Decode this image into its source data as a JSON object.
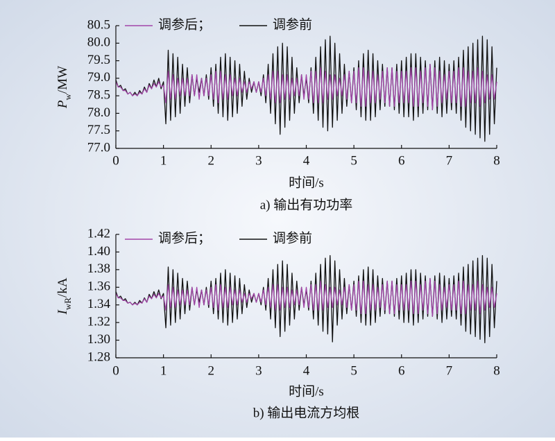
{
  "chart_data": [
    {
      "type": "line",
      "ylabel": {
        "symbol": "P",
        "subscript": "w",
        "unit": "/MW"
      },
      "xlabel": "时间/s",
      "caption": "a) 输出有功功率",
      "xlim": [
        0,
        8
      ],
      "xticks": [
        0,
        1,
        2,
        3,
        4,
        5,
        6,
        7,
        8
      ],
      "ylim": [
        77,
        80.5
      ],
      "yticks": [
        {
          "value": 77,
          "label": "77.0"
        },
        77.5,
        {
          "value": 78,
          "label": "78.0"
        },
        78.5,
        {
          "value": 79,
          "label": "79.0"
        },
        79.5,
        {
          "value": 80,
          "label": "80.0"
        },
        80.5
      ],
      "x": [
        0,
        0.05,
        0.1,
        0.15,
        0.2,
        0.25,
        0.3,
        0.35,
        0.4,
        0.45,
        0.5,
        0.55,
        0.6,
        0.65,
        0.7,
        0.75,
        0.8,
        0.85,
        0.9,
        0.95,
        1,
        1.05,
        1.1,
        1.15,
        1.2,
        1.25,
        1.3,
        1.35,
        1.4,
        1.45,
        1.5,
        1.55,
        1.6,
        1.65,
        1.7,
        1.75,
        1.8,
        1.85,
        1.9,
        1.95,
        2,
        2.05,
        2.1,
        2.15,
        2.2,
        2.25,
        2.3,
        2.35,
        2.4,
        2.45,
        2.5,
        2.55,
        2.6,
        2.65,
        2.7,
        2.75,
        2.8,
        2.85,
        2.9,
        2.95,
        3,
        3.05,
        3.1,
        3.15,
        3.2,
        3.25,
        3.3,
        3.35,
        3.4,
        3.45,
        3.5,
        3.55,
        3.6,
        3.65,
        3.7,
        3.75,
        3.8,
        3.85,
        3.9,
        3.95,
        4,
        4.05,
        4.1,
        4.15,
        4.2,
        4.25,
        4.3,
        4.35,
        4.4,
        4.45,
        4.5,
        4.55,
        4.6,
        4.65,
        4.7,
        4.75,
        4.8,
        4.85,
        4.9,
        4.95,
        5,
        5.05,
        5.1,
        5.15,
        5.2,
        5.25,
        5.3,
        5.35,
        5.4,
        5.45,
        5.5,
        5.55,
        5.6,
        5.65,
        5.7,
        5.75,
        5.8,
        5.85,
        5.9,
        5.95,
        6,
        6.05,
        6.1,
        6.15,
        6.2,
        6.25,
        6.3,
        6.35,
        6.4,
        6.45,
        6.5,
        6.55,
        6.6,
        6.65,
        6.7,
        6.75,
        6.8,
        6.85,
        6.9,
        6.95,
        7,
        7.05,
        7.1,
        7.15,
        7.2,
        7.25,
        7.3,
        7.35,
        7.4,
        7.45,
        7.5,
        7.55,
        7.6,
        7.65,
        7.7,
        7.75,
        7.8,
        7.85,
        7.9,
        7.95,
        8
      ],
      "series": [
        {
          "name": "调参后；",
          "color": "#a245a8",
          "values": [
            78.9,
            78.75,
            78.75,
            78.65,
            78.65,
            78.55,
            78.6,
            78.5,
            78.55,
            78.5,
            78.6,
            78.55,
            78.7,
            78.6,
            78.8,
            78.7,
            78.85,
            78.75,
            78.9,
            78.75,
            78.8,
            78.3,
            79.2,
            78.4,
            79.1,
            78.4,
            79.0,
            78.5,
            79.0,
            78.5,
            79.0,
            78.5,
            79.1,
            78.5,
            79.1,
            78.4,
            79.0,
            78.5,
            79.0,
            78.5,
            79.1,
            78.4,
            79.2,
            78.3,
            79.2,
            78.4,
            79.1,
            78.4,
            79.1,
            78.5,
            79.0,
            78.5,
            79.0,
            78.6,
            78.9,
            78.6,
            78.9,
            78.7,
            78.9,
            78.6,
            78.9,
            78.6,
            79.0,
            78.5,
            79.1,
            78.4,
            79.2,
            78.3,
            79.2,
            78.3,
            79.1,
            78.4,
            79.1,
            78.4,
            79.0,
            78.5,
            79.0,
            78.5,
            79.1,
            78.4,
            79.1,
            78.4,
            79.2,
            78.3,
            79.2,
            78.3,
            79.3,
            78.3,
            79.2,
            78.4,
            79.1,
            78.4,
            79.1,
            78.5,
            79.0,
            78.5,
            79.1,
            78.4,
            79.2,
            78.3,
            79.2,
            78.3,
            79.3,
            78.2,
            79.3,
            78.2,
            79.2,
            78.3,
            79.2,
            78.3,
            79.1,
            78.4,
            79.2,
            78.3,
            79.3,
            78.2,
            79.3,
            78.2,
            79.2,
            78.3,
            79.2,
            78.3,
            79.2,
            78.3,
            79.3,
            78.2,
            79.3,
            78.2,
            79.2,
            78.3,
            79.3,
            78.2,
            79.4,
            78.1,
            79.3,
            78.2,
            79.2,
            78.3,
            79.1,
            78.4,
            79.2,
            78.3,
            79.2,
            78.3,
            79.3,
            78.2,
            79.3,
            78.2,
            79.2,
            78.3,
            79.2,
            78.3,
            79.3,
            78.2,
            79.2,
            78.3,
            79.1,
            78.4,
            79.1,
            78.4,
            78.9
          ]
        },
        {
          "name": "调参前",
          "color": "#111111",
          "values": [
            78.95,
            78.75,
            78.8,
            78.65,
            78.7,
            78.55,
            78.6,
            78.5,
            78.6,
            78.5,
            78.65,
            78.55,
            78.75,
            78.6,
            78.85,
            78.7,
            78.95,
            78.75,
            79.0,
            78.7,
            78.9,
            77.7,
            79.8,
            77.8,
            79.7,
            77.9,
            79.6,
            78.0,
            79.4,
            78.2,
            79.3,
            78.3,
            79.1,
            78.5,
            79.0,
            78.6,
            79.0,
            78.5,
            79.1,
            78.4,
            79.3,
            78.2,
            79.4,
            78.0,
            79.6,
            77.9,
            79.7,
            77.8,
            79.6,
            77.9,
            79.5,
            78.0,
            79.4,
            78.2,
            79.2,
            78.4,
            79.0,
            78.6,
            78.9,
            78.6,
            78.9,
            78.5,
            79.1,
            78.3,
            79.4,
            78.0,
            79.7,
            77.7,
            79.9,
            77.4,
            80.0,
            77.6,
            79.9,
            77.8,
            79.6,
            78.0,
            79.3,
            78.3,
            79.1,
            78.5,
            79.0,
            78.3,
            79.3,
            78.0,
            79.6,
            77.8,
            79.9,
            77.6,
            80.1,
            77.5,
            80.2,
            77.6,
            80.0,
            77.8,
            79.7,
            78.0,
            79.4,
            78.2,
            79.2,
            78.3,
            79.3,
            78.1,
            79.5,
            77.9,
            79.7,
            77.8,
            79.8,
            77.8,
            79.7,
            77.9,
            79.5,
            78.1,
            79.4,
            78.2,
            79.3,
            78.2,
            79.3,
            78.1,
            79.4,
            78.0,
            79.5,
            77.9,
            79.6,
            77.9,
            79.7,
            77.8,
            79.7,
            77.9,
            79.6,
            78.0,
            79.5,
            78.1,
            79.4,
            78.1,
            79.5,
            78.0,
            79.6,
            77.9,
            79.5,
            78.0,
            79.4,
            78.1,
            79.5,
            78.0,
            79.6,
            77.8,
            79.8,
            77.6,
            79.9,
            77.5,
            80.0,
            77.4,
            80.1,
            77.3,
            80.2,
            77.2,
            80.1,
            77.4,
            79.9,
            77.7,
            79.3
          ]
        }
      ]
    },
    {
      "type": "line",
      "ylabel": {
        "symbol": "I",
        "subscript": "wR",
        "unit": "/kA"
      },
      "xlabel": "时间/s",
      "caption": "b) 输出电流方均根",
      "xlim": [
        0,
        8
      ],
      "xticks": [
        0,
        1,
        2,
        3,
        4,
        5,
        6,
        7,
        8
      ],
      "ylim": [
        1.28,
        1.42
      ],
      "yticks": [
        1.28,
        {
          "value": 1.3,
          "label": "1.30"
        },
        1.32,
        1.34,
        1.36,
        1.38,
        {
          "value": 1.4,
          "label": "1.40"
        },
        1.42
      ],
      "x": [
        0,
        0.05,
        0.1,
        0.15,
        0.2,
        0.25,
        0.3,
        0.35,
        0.4,
        0.45,
        0.5,
        0.55,
        0.6,
        0.65,
        0.7,
        0.75,
        0.8,
        0.85,
        0.9,
        0.95,
        1,
        1.05,
        1.1,
        1.15,
        1.2,
        1.25,
        1.3,
        1.35,
        1.4,
        1.45,
        1.5,
        1.55,
        1.6,
        1.65,
        1.7,
        1.75,
        1.8,
        1.85,
        1.9,
        1.95,
        2,
        2.05,
        2.1,
        2.15,
        2.2,
        2.25,
        2.3,
        2.35,
        2.4,
        2.45,
        2.5,
        2.55,
        2.6,
        2.65,
        2.7,
        2.75,
        2.8,
        2.85,
        2.9,
        2.95,
        3,
        3.05,
        3.1,
        3.15,
        3.2,
        3.25,
        3.3,
        3.35,
        3.4,
        3.45,
        3.5,
        3.55,
        3.6,
        3.65,
        3.7,
        3.75,
        3.8,
        3.85,
        3.9,
        3.95,
        4,
        4.05,
        4.1,
        4.15,
        4.2,
        4.25,
        4.3,
        4.35,
        4.4,
        4.45,
        4.5,
        4.55,
        4.6,
        4.65,
        4.7,
        4.75,
        4.8,
        4.85,
        4.9,
        4.95,
        5,
        5.05,
        5.1,
        5.15,
        5.2,
        5.25,
        5.3,
        5.35,
        5.4,
        5.45,
        5.5,
        5.55,
        5.6,
        5.65,
        5.7,
        5.75,
        5.8,
        5.85,
        5.9,
        5.95,
        6,
        6.05,
        6.1,
        6.15,
        6.2,
        6.25,
        6.3,
        6.35,
        6.4,
        6.45,
        6.5,
        6.55,
        6.6,
        6.65,
        6.7,
        6.75,
        6.8,
        6.85,
        6.9,
        6.95,
        7,
        7.05,
        7.1,
        7.15,
        7.2,
        7.25,
        7.3,
        7.35,
        7.4,
        7.45,
        7.5,
        7.55,
        7.6,
        7.65,
        7.7,
        7.75,
        7.8,
        7.85,
        7.9,
        7.95,
        8
      ],
      "series": [
        {
          "name": "调参后；",
          "color": "#a245a8",
          "values": [
            1.353,
            1.348,
            1.348,
            1.345,
            1.345,
            1.342,
            1.343,
            1.34,
            1.342,
            1.34,
            1.343,
            1.342,
            1.347,
            1.343,
            1.35,
            1.347,
            1.352,
            1.348,
            1.353,
            1.348,
            1.35,
            1.334,
            1.363,
            1.337,
            1.36,
            1.337,
            1.357,
            1.34,
            1.357,
            1.34,
            1.357,
            1.34,
            1.36,
            1.34,
            1.36,
            1.337,
            1.357,
            1.34,
            1.357,
            1.34,
            1.36,
            1.337,
            1.363,
            1.334,
            1.363,
            1.337,
            1.36,
            1.337,
            1.36,
            1.34,
            1.357,
            1.34,
            1.357,
            1.343,
            1.353,
            1.343,
            1.353,
            1.347,
            1.353,
            1.343,
            1.353,
            1.343,
            1.357,
            1.34,
            1.36,
            1.337,
            1.363,
            1.334,
            1.363,
            1.334,
            1.36,
            1.337,
            1.36,
            1.337,
            1.357,
            1.34,
            1.357,
            1.34,
            1.36,
            1.337,
            1.36,
            1.337,
            1.363,
            1.334,
            1.363,
            1.334,
            1.367,
            1.334,
            1.363,
            1.337,
            1.36,
            1.337,
            1.36,
            1.34,
            1.357,
            1.34,
            1.36,
            1.337,
            1.363,
            1.334,
            1.363,
            1.334,
            1.367,
            1.33,
            1.367,
            1.33,
            1.363,
            1.334,
            1.363,
            1.334,
            1.36,
            1.337,
            1.363,
            1.334,
            1.367,
            1.33,
            1.367,
            1.33,
            1.363,
            1.334,
            1.363,
            1.334,
            1.363,
            1.334,
            1.367,
            1.33,
            1.367,
            1.33,
            1.363,
            1.334,
            1.367,
            1.33,
            1.37,
            1.327,
            1.367,
            1.33,
            1.363,
            1.334,
            1.36,
            1.337,
            1.363,
            1.334,
            1.363,
            1.334,
            1.367,
            1.33,
            1.367,
            1.33,
            1.363,
            1.334,
            1.363,
            1.334,
            1.367,
            1.33,
            1.363,
            1.334,
            1.36,
            1.337,
            1.36,
            1.337,
            1.353
          ]
        },
        {
          "name": "调参前",
          "color": "#111111",
          "values": [
            1.355,
            1.348,
            1.35,
            1.345,
            1.347,
            1.342,
            1.343,
            1.34,
            1.343,
            1.34,
            1.345,
            1.342,
            1.348,
            1.343,
            1.352,
            1.347,
            1.355,
            1.348,
            1.357,
            1.347,
            1.353,
            1.314,
            1.383,
            1.317,
            1.38,
            1.32,
            1.376,
            1.324,
            1.37,
            1.33,
            1.367,
            1.334,
            1.36,
            1.34,
            1.357,
            1.343,
            1.357,
            1.34,
            1.36,
            1.337,
            1.367,
            1.33,
            1.37,
            1.324,
            1.376,
            1.32,
            1.38,
            1.317,
            1.376,
            1.32,
            1.373,
            1.324,
            1.37,
            1.33,
            1.363,
            1.337,
            1.357,
            1.343,
            1.353,
            1.343,
            1.353,
            1.34,
            1.36,
            1.334,
            1.37,
            1.324,
            1.38,
            1.314,
            1.386,
            1.304,
            1.39,
            1.31,
            1.386,
            1.317,
            1.376,
            1.324,
            1.367,
            1.334,
            1.36,
            1.34,
            1.357,
            1.334,
            1.367,
            1.324,
            1.376,
            1.317,
            1.386,
            1.31,
            1.393,
            1.307,
            1.396,
            1.298,
            1.39,
            1.317,
            1.38,
            1.324,
            1.37,
            1.33,
            1.363,
            1.334,
            1.367,
            1.327,
            1.373,
            1.32,
            1.38,
            1.317,
            1.383,
            1.317,
            1.38,
            1.32,
            1.373,
            1.327,
            1.37,
            1.33,
            1.367,
            1.33,
            1.367,
            1.327,
            1.37,
            1.324,
            1.373,
            1.32,
            1.376,
            1.32,
            1.38,
            1.317,
            1.38,
            1.32,
            1.376,
            1.324,
            1.373,
            1.327,
            1.37,
            1.327,
            1.373,
            1.324,
            1.376,
            1.32,
            1.373,
            1.324,
            1.37,
            1.327,
            1.373,
            1.324,
            1.376,
            1.317,
            1.383,
            1.31,
            1.386,
            1.307,
            1.39,
            1.304,
            1.393,
            1.301,
            1.396,
            1.297,
            1.393,
            1.304,
            1.386,
            1.314,
            1.367
          ]
        }
      ]
    }
  ]
}
